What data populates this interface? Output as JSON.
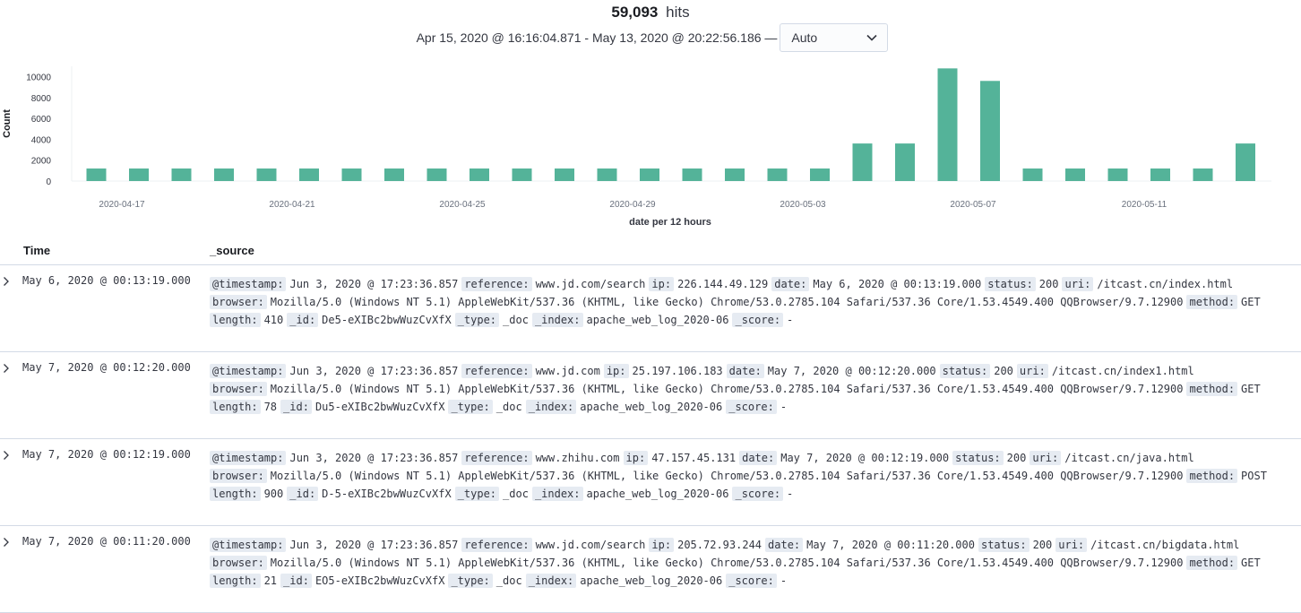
{
  "header": {
    "hits_count": "59,093",
    "hits_label": "hits",
    "time_range": "Apr 15, 2020 @ 16:16:04.871 - May 13, 2020 @ 20:22:56.186 —",
    "interval_value": "Auto"
  },
  "chart_data": {
    "type": "bar",
    "ylabel": "Count",
    "xlabel": "date per 12 hours",
    "ylim": [
      0,
      11000
    ],
    "yticks": [
      0,
      2000,
      4000,
      6000,
      8000,
      10000
    ],
    "xtick_labels": [
      "2020-04-17",
      "2020-04-21",
      "2020-04-25",
      "2020-04-29",
      "2020-05-03",
      "2020-05-07",
      "2020-05-11"
    ],
    "color": "#54b399",
    "values": [
      1200,
      1200,
      1200,
      1200,
      1200,
      1200,
      1200,
      1200,
      1200,
      1200,
      1200,
      1200,
      1200,
      1200,
      1200,
      1200,
      1200,
      1200,
      3600,
      3600,
      10800,
      9600,
      1200,
      1200,
      1200,
      1200,
      1200,
      3600
    ]
  },
  "table": {
    "col_time": "Time",
    "col_source": "_source",
    "rows": [
      {
        "time": "May 6, 2020 @ 00:13:19.000",
        "lines": [
          [
            {
              "k": "@timestamp:",
              "v": "Jun 3, 2020 @ 17:23:36.857"
            },
            {
              "k": "reference:",
              "v": "www.jd.com/search"
            },
            {
              "k": "ip:",
              "v": "226.144.49.129"
            },
            {
              "k": "date:",
              "v": "May 6, 2020 @ 00:13:19.000"
            },
            {
              "k": "status:",
              "v": "200"
            },
            {
              "k": "uri:",
              "v": "/itcast.cn/index.html"
            }
          ],
          [
            {
              "k": "browser:",
              "v": "Mozilla/5.0 (Windows NT 5.1) AppleWebKit/537.36 (KHTML, like Gecko) Chrome/53.0.2785.104 Safari/537.36 Core/1.53.4549.400 QQBrowser/9.7.12900"
            },
            {
              "k": "method:",
              "v": "GET"
            }
          ],
          [
            {
              "k": "length:",
              "v": "410"
            },
            {
              "k": "_id:",
              "v": "De5-eXIBc2bwWuzCvXfX"
            },
            {
              "k": "_type:",
              "v": "_doc"
            },
            {
              "k": "_index:",
              "v": "apache_web_log_2020-06"
            },
            {
              "k": "_score:",
              "v": "-"
            }
          ]
        ]
      },
      {
        "time": "May 7, 2020 @ 00:12:20.000",
        "lines": [
          [
            {
              "k": "@timestamp:",
              "v": "Jun 3, 2020 @ 17:23:36.857"
            },
            {
              "k": "reference:",
              "v": "www.jd.com"
            },
            {
              "k": "ip:",
              "v": "25.197.106.183"
            },
            {
              "k": "date:",
              "v": "May 7, 2020 @ 00:12:20.000"
            },
            {
              "k": "status:",
              "v": "200"
            },
            {
              "k": "uri:",
              "v": "/itcast.cn/index1.html"
            }
          ],
          [
            {
              "k": "browser:",
              "v": "Mozilla/5.0 (Windows NT 5.1) AppleWebKit/537.36 (KHTML, like Gecko) Chrome/53.0.2785.104 Safari/537.36 Core/1.53.4549.400 QQBrowser/9.7.12900"
            },
            {
              "k": "method:",
              "v": "GET"
            }
          ],
          [
            {
              "k": "length:",
              "v": "78"
            },
            {
              "k": "_id:",
              "v": "Du5-eXIBc2bwWuzCvXfX"
            },
            {
              "k": "_type:",
              "v": "_doc"
            },
            {
              "k": "_index:",
              "v": "apache_web_log_2020-06"
            },
            {
              "k": "_score:",
              "v": "-"
            }
          ]
        ]
      },
      {
        "time": "May 7, 2020 @ 00:12:19.000",
        "lines": [
          [
            {
              "k": "@timestamp:",
              "v": "Jun 3, 2020 @ 17:23:36.857"
            },
            {
              "k": "reference:",
              "v": "www.zhihu.com"
            },
            {
              "k": "ip:",
              "v": "47.157.45.131"
            },
            {
              "k": "date:",
              "v": "May 7, 2020 @ 00:12:19.000"
            },
            {
              "k": "status:",
              "v": "200"
            },
            {
              "k": "uri:",
              "v": "/itcast.cn/java.html"
            }
          ],
          [
            {
              "k": "browser:",
              "v": "Mozilla/5.0 (Windows NT 5.1) AppleWebKit/537.36 (KHTML, like Gecko) Chrome/53.0.2785.104 Safari/537.36 Core/1.53.4549.400 QQBrowser/9.7.12900"
            },
            {
              "k": "method:",
              "v": "POST"
            }
          ],
          [
            {
              "k": "length:",
              "v": "900"
            },
            {
              "k": "_id:",
              "v": "D-5-eXIBc2bwWuzCvXfX"
            },
            {
              "k": "_type:",
              "v": "_doc"
            },
            {
              "k": "_index:",
              "v": "apache_web_log_2020-06"
            },
            {
              "k": "_score:",
              "v": "-"
            }
          ]
        ]
      },
      {
        "time": "May 7, 2020 @ 00:11:20.000",
        "lines": [
          [
            {
              "k": "@timestamp:",
              "v": "Jun 3, 2020 @ 17:23:36.857"
            },
            {
              "k": "reference:",
              "v": "www.jd.com/search"
            },
            {
              "k": "ip:",
              "v": "205.72.93.244"
            },
            {
              "k": "date:",
              "v": "May 7, 2020 @ 00:11:20.000"
            },
            {
              "k": "status:",
              "v": "200"
            },
            {
              "k": "uri:",
              "v": "/itcast.cn/bigdata.html"
            }
          ],
          [
            {
              "k": "browser:",
              "v": "Mozilla/5.0 (Windows NT 5.1) AppleWebKit/537.36 (KHTML, like Gecko) Chrome/53.0.2785.104 Safari/537.36 Core/1.53.4549.400 QQBrowser/9.7.12900"
            },
            {
              "k": "method:",
              "v": "GET"
            }
          ],
          [
            {
              "k": "length:",
              "v": "21"
            },
            {
              "k": "_id:",
              "v": "EO5-eXIBc2bwWuzCvXfX"
            },
            {
              "k": "_type:",
              "v": "_doc"
            },
            {
              "k": "_index:",
              "v": "apache_web_log_2020-06"
            },
            {
              "k": "_score:",
              "v": "-"
            }
          ]
        ]
      }
    ]
  }
}
